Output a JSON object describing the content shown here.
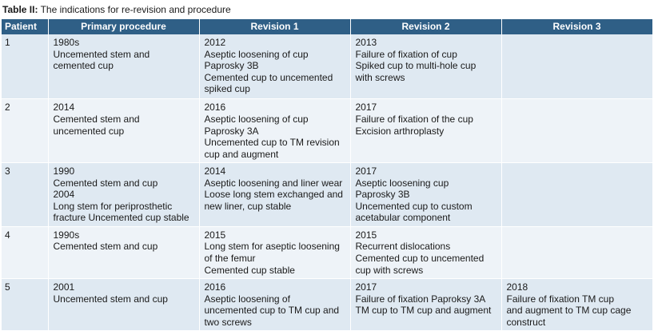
{
  "caption": {
    "label": "Table II:",
    "text": "The indications for re-revision and procedure"
  },
  "columns": [
    "Patient",
    "Primary procedure",
    "Revision 1",
    "Revision 2",
    "Revision 3"
  ],
  "rows": [
    {
      "patient": "1",
      "primary": [
        "1980s",
        "Uncemented stem and",
        "cemented cup"
      ],
      "rev1": [
        "2012",
        "Aseptic loosening of cup",
        "Paprosky 3B",
        "Cemented cup to uncemented",
        "spiked cup"
      ],
      "rev2": [
        "2013",
        "Failure of fixation of cup",
        "Spiked cup to multi-hole cup",
        "with screws"
      ],
      "rev3": []
    },
    {
      "patient": "2",
      "primary": [
        "2014",
        "Cemented stem and",
        "uncemented cup"
      ],
      "rev1": [
        "2016",
        "Aseptic loosening of cup",
        "Paprosky 3A",
        "Uncemented cup to TM revision",
        "cup and augment"
      ],
      "rev2": [
        "2017",
        "Failure of fixation of the cup",
        "Excision arthroplasty"
      ],
      "rev3": []
    },
    {
      "patient": "3",
      "primary": [
        "1990",
        "Cemented stem and cup",
        "2004",
        "Long stem for periprosthetic",
        "fracture Uncemented cup stable"
      ],
      "rev1": [
        "2014",
        "Aseptic loosening and liner wear",
        "Loose long stem exchanged and",
        "new liner, cup stable"
      ],
      "rev2": [
        "2017",
        "Aseptic loosening cup",
        "Paprosky 3B",
        "Uncemented cup to custom",
        "acetabular component"
      ],
      "rev3": []
    },
    {
      "patient": "4",
      "primary": [
        "1990s",
        "Cemented stem and cup"
      ],
      "rev1": [
        "2015",
        "Long stem for aseptic loosening",
        "of the femur",
        "Cemented cup stable"
      ],
      "rev2": [
        "2015",
        "Recurrent dislocations",
        "Cemented cup to uncemented",
        "cup with screws"
      ],
      "rev3": []
    },
    {
      "patient": "5",
      "primary": [
        "2001",
        "Uncemented stem and cup"
      ],
      "rev1": [
        "2016",
        "Aseptic loosening of",
        "uncemented cup to TM cup and",
        "two screws"
      ],
      "rev2": [
        "2017",
        "Failure of fixation Paproksy 3A",
        "TM cup to TM cup and augment"
      ],
      "rev3": [
        "2018",
        "Failure of fixation TM cup",
        "and augment to TM cup cage",
        "construct"
      ]
    }
  ]
}
